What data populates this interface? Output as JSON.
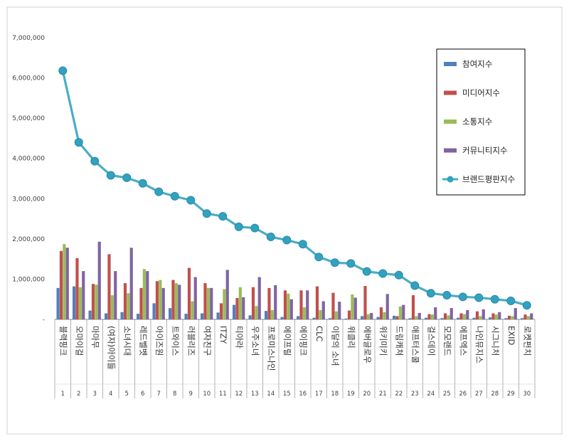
{
  "chart_data": {
    "type": "bar",
    "ylim": [
      0,
      7000000
    ],
    "yticks": [
      "7,000,000",
      "6,000,000",
      "5,000,000",
      "4,000,000",
      "3,000,000",
      "2,000,000",
      "1,000,000",
      "-"
    ],
    "legend_position": "top-right",
    "grid": false,
    "categories": [
      "블랙핑크",
      "오마이걸",
      "마마무",
      "(여자)아이들",
      "소녀시대",
      "레드벨벳",
      "아이즈원",
      "트와이스",
      "러블리즈",
      "여자친구",
      "ITZY",
      "티아라",
      "우주소녀",
      "프로미스나인",
      "에이프릴",
      "에이핑크",
      "CLC",
      "이달의 소녀",
      "위클리",
      "에버글로우",
      "위키미키",
      "드림캐쳐",
      "애프터스쿨",
      "걸스데이",
      "모모랜드",
      "에프엑스",
      "나인뮤지스",
      "시그니처",
      "EXID",
      "로켓펀치"
    ],
    "ranks": [
      "1",
      "2",
      "3",
      "4",
      "5",
      "6",
      "7",
      "8",
      "9",
      "10",
      "11",
      "12",
      "13",
      "14",
      "15",
      "16",
      "17",
      "18",
      "19",
      "20",
      "21",
      "22",
      "23",
      "24",
      "25",
      "26",
      "27",
      "28",
      "29",
      "30"
    ],
    "series": [
      {
        "name": "참여지수",
        "color": "#4f81bd",
        "values": [
          780000,
          820000,
          220000,
          150000,
          180000,
          140000,
          400000,
          280000,
          140000,
          150000,
          170000,
          360000,
          100000,
          210000,
          60000,
          80000,
          40000,
          30000,
          20000,
          80000,
          60000,
          90000,
          30000,
          40000,
          30000,
          40000,
          40000,
          50000,
          30000,
          30000
        ]
      },
      {
        "name": "미디어지수",
        "color": "#c0504d",
        "values": [
          1700000,
          1520000,
          880000,
          1620000,
          900000,
          780000,
          950000,
          980000,
          1280000,
          900000,
          400000,
          530000,
          800000,
          780000,
          720000,
          720000,
          820000,
          660000,
          220000,
          830000,
          300000,
          80000,
          600000,
          130000,
          150000,
          150000,
          200000,
          150000,
          90000,
          120000
        ]
      },
      {
        "name": "소통지수",
        "color": "#9bbb59",
        "values": [
          1870000,
          800000,
          860000,
          600000,
          650000,
          1250000,
          980000,
          900000,
          450000,
          780000,
          750000,
          800000,
          330000,
          230000,
          640000,
          300000,
          230000,
          200000,
          620000,
          130000,
          180000,
          320000,
          80000,
          120000,
          100000,
          130000,
          80000,
          120000,
          80000,
          80000
        ]
      },
      {
        "name": "커뮤니티지수",
        "color": "#8064a2",
        "values": [
          1780000,
          1200000,
          1930000,
          1200000,
          1780000,
          1200000,
          780000,
          860000,
          1050000,
          780000,
          1230000,
          550000,
          1050000,
          850000,
          500000,
          720000,
          450000,
          440000,
          540000,
          160000,
          630000,
          360000,
          160000,
          300000,
          280000,
          230000,
          250000,
          180000,
          280000,
          150000
        ]
      },
      {
        "name": "브랜드평판지수",
        "type": "line",
        "color": "#4bacc6",
        "values": [
          6180000,
          4400000,
          3930000,
          3580000,
          3520000,
          3380000,
          3170000,
          3060000,
          2960000,
          2630000,
          2560000,
          2300000,
          2270000,
          2050000,
          1970000,
          1870000,
          1550000,
          1410000,
          1390000,
          1190000,
          1140000,
          1100000,
          840000,
          650000,
          600000,
          560000,
          540000,
          500000,
          460000,
          350000
        ]
      }
    ]
  }
}
